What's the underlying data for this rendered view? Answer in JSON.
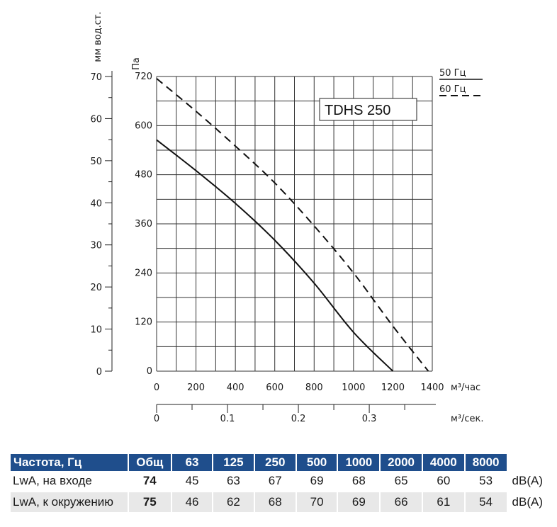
{
  "chart_data": {
    "type": "line",
    "title": "TDHS 250",
    "x_label": "м³/час",
    "x_ticks": [
      0,
      200,
      400,
      600,
      800,
      1000,
      1200,
      1400
    ],
    "x_range": [
      0,
      1400
    ],
    "x2_label": "м³/сек.",
    "x2_ticks": [
      0,
      0.1,
      0.2,
      0.3
    ],
    "y_label": "Па",
    "y_ticks": [
      0,
      120,
      240,
      360,
      480,
      600,
      720
    ],
    "y_range": [
      0,
      720
    ],
    "y2_label": "мм вод.ст.",
    "y2_ticks": [
      0,
      10,
      20,
      30,
      40,
      50,
      60,
      70
    ],
    "y2_range": [
      0,
      70
    ],
    "series": [
      {
        "name": "50 Гц",
        "style": "solid",
        "x": [
          0,
          200,
          400,
          600,
          800,
          1000,
          1200
        ],
        "y": [
          565,
          490,
          410,
          320,
          215,
          95,
          0
        ]
      },
      {
        "name": "60 Гц",
        "style": "dashed",
        "x": [
          0,
          200,
          400,
          600,
          800,
          1000,
          1200,
          1380
        ],
        "y": [
          715,
          635,
          550,
          460,
          355,
          240,
          110,
          0
        ]
      }
    ],
    "legend": [
      "50 Гц",
      "60 Гц"
    ]
  },
  "noise_table": {
    "headers": [
      "Частота, Гц",
      "Общ",
      "63",
      "125",
      "250",
      "500",
      "1000",
      "2000",
      "4000",
      "8000"
    ],
    "rows": [
      {
        "label": "LwA, на входе",
        "total": "74",
        "values": [
          "45",
          "63",
          "67",
          "69",
          "68",
          "65",
          "60",
          "53"
        ],
        "unit": "dB(A)"
      },
      {
        "label": "LwA, к окружению",
        "total": "75",
        "values": [
          "46",
          "62",
          "68",
          "70",
          "69",
          "66",
          "61",
          "54"
        ],
        "unit": "dB(A)"
      }
    ]
  },
  "colors": {
    "header_bg": "#1f4e8c",
    "row_alt": "#e8e8e8",
    "grid": "#333333"
  }
}
